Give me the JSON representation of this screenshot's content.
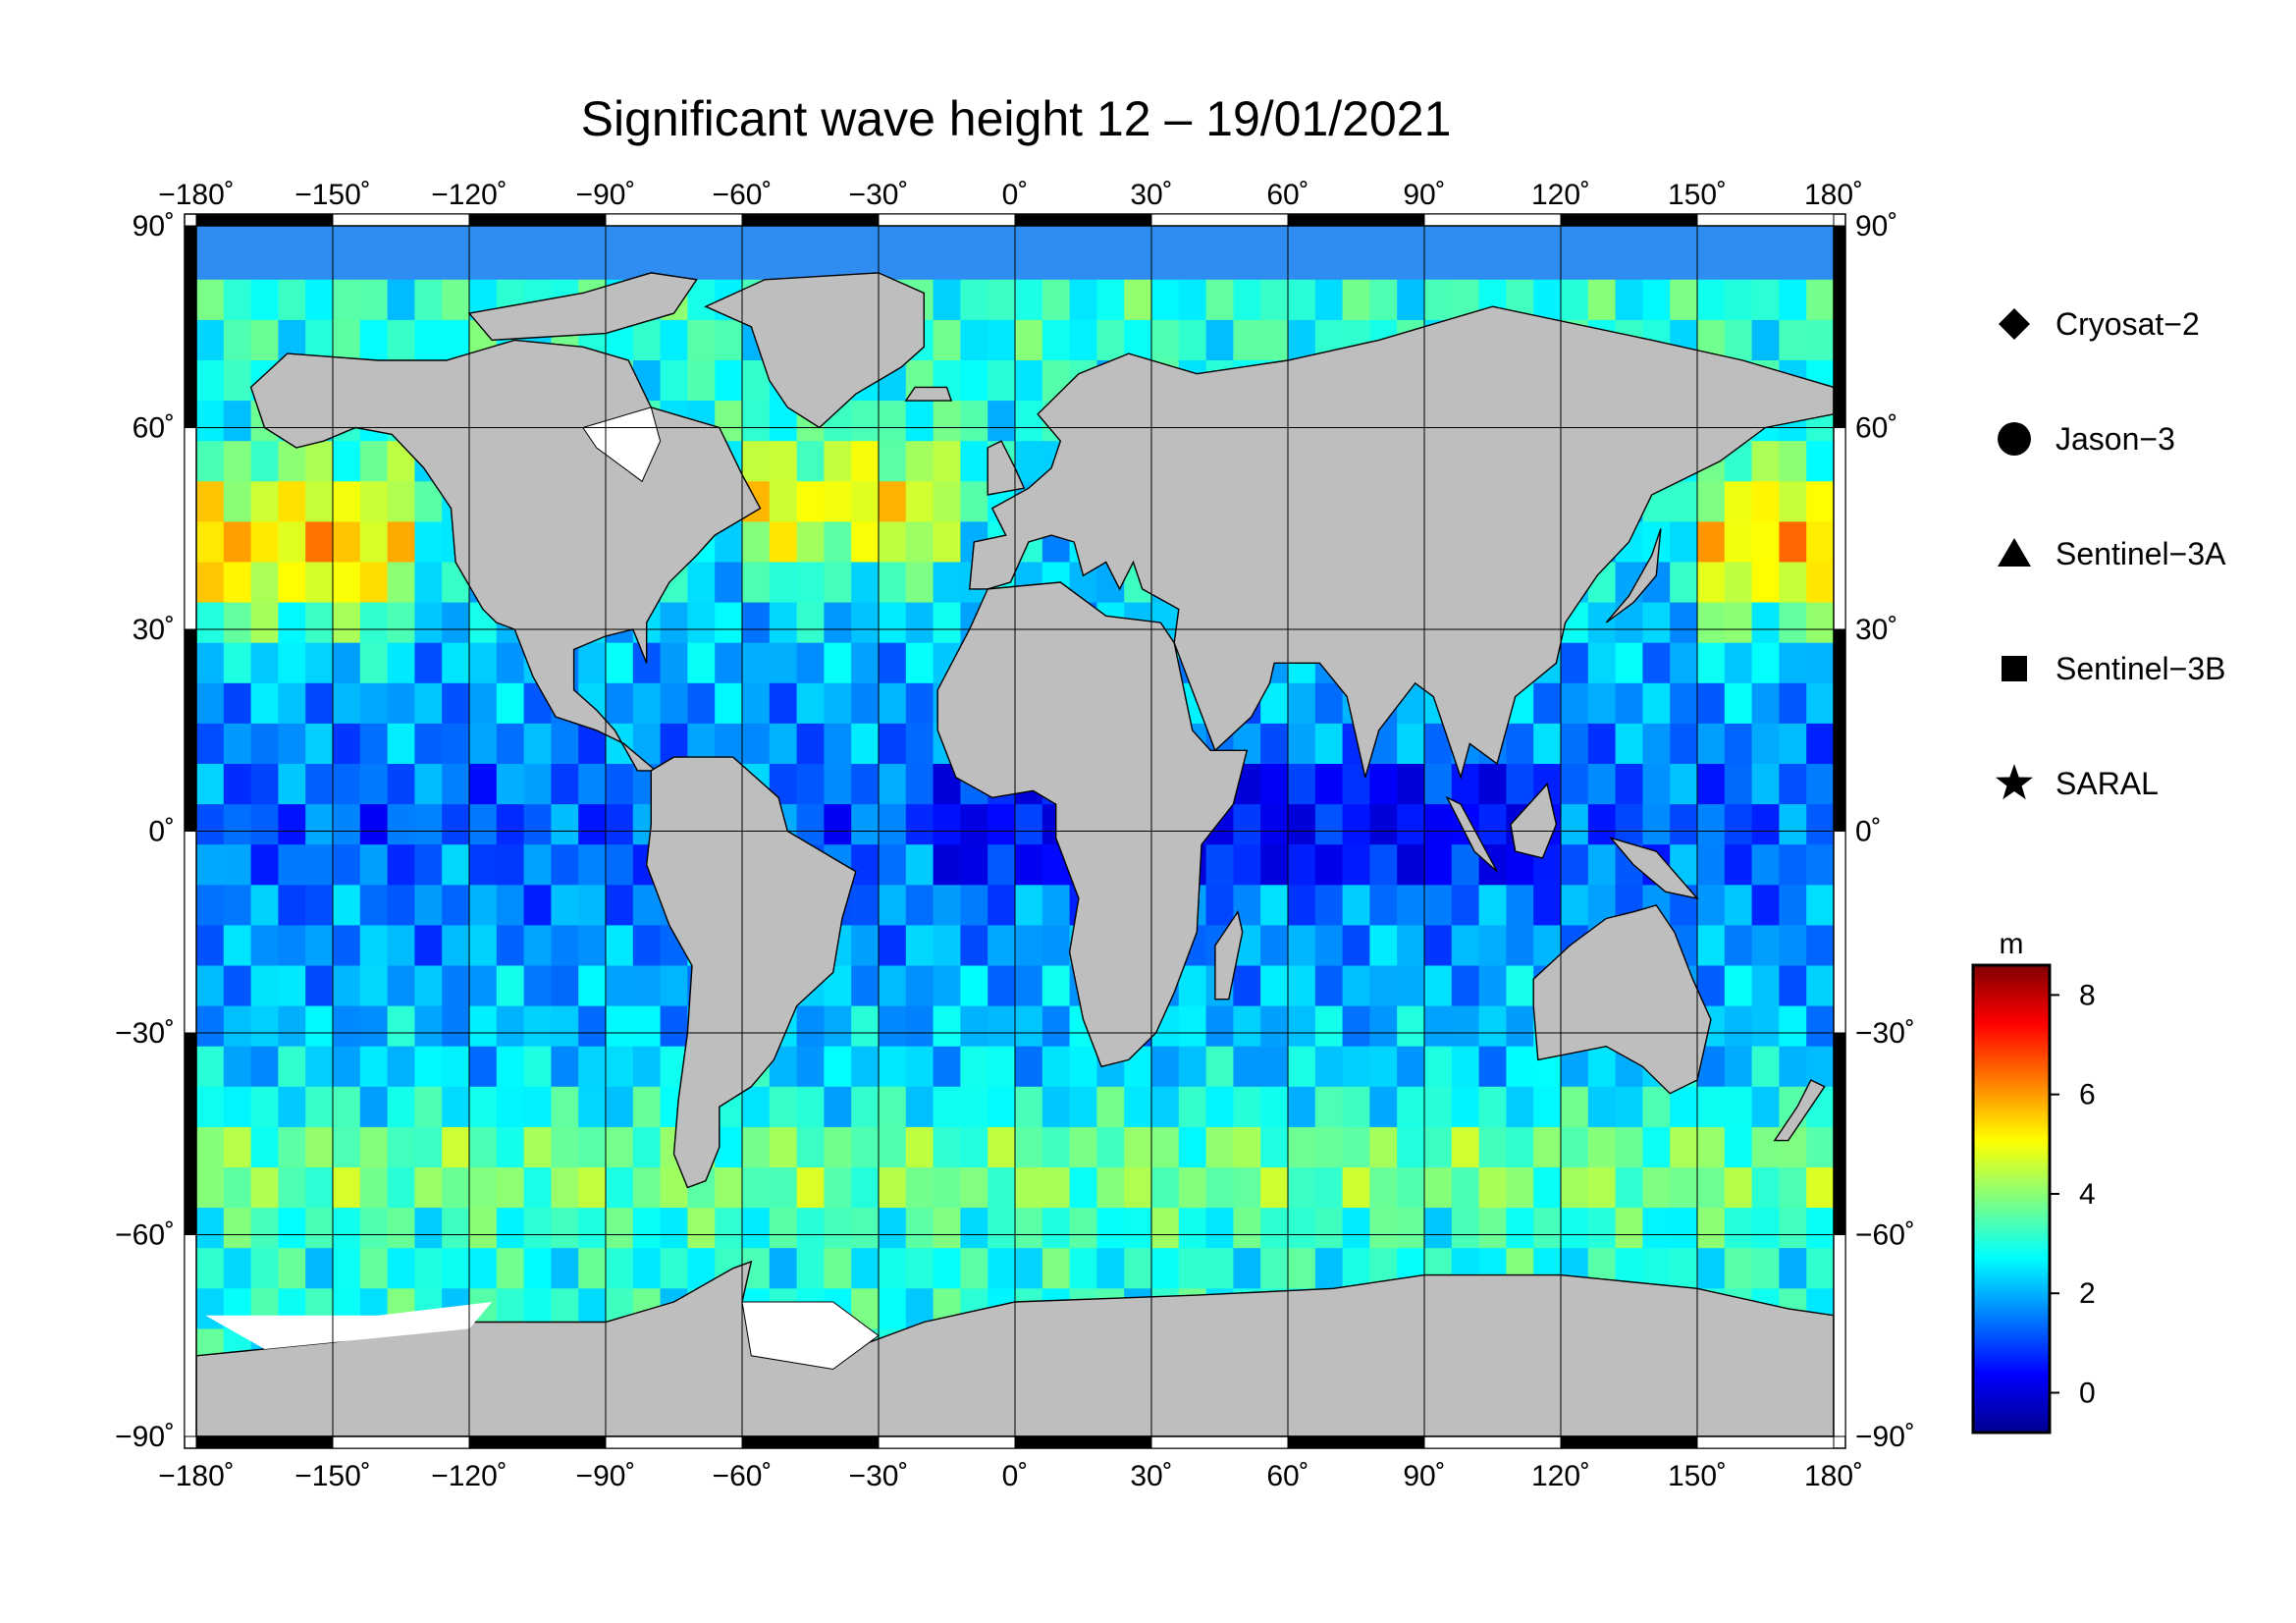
{
  "title": "Significant wave height 12 – 19/01/2021",
  "map": {
    "lon_ticks": [
      "−180˚",
      "−150˚",
      "−120˚",
      "−90˚",
      "−60˚",
      "−30˚",
      "0˚",
      "30˚",
      "60˚",
      "90˚",
      "120˚",
      "150˚",
      "180˚"
    ],
    "lat_ticks_left": [
      "90˚",
      "60˚",
      "30˚",
      "0˚",
      "−30˚",
      "−60˚",
      "−90˚"
    ],
    "lat_ticks_right": [
      "90˚",
      "60˚",
      "30˚",
      "0˚",
      "−30˚",
      "−60˚",
      "−90˚"
    ],
    "lon_range": [
      -180,
      180
    ],
    "lat_range": [
      -90,
      90
    ],
    "grid": true,
    "land_color": "#bebebe",
    "ice_color": "#ffffff"
  },
  "legend": {
    "items": [
      {
        "label": "Cryosat−2",
        "marker": "diamond"
      },
      {
        "label": "Jason−3",
        "marker": "circle"
      },
      {
        "label": "Sentinel−3A",
        "marker": "triangle"
      },
      {
        "label": "Sentinel−3B",
        "marker": "square"
      },
      {
        "label": "SARAL",
        "marker": "star"
      }
    ]
  },
  "colorbar": {
    "unit": "m",
    "ticks": [
      "8",
      "6",
      "4",
      "2",
      "0"
    ],
    "range": [
      -0.8,
      8.6
    ],
    "colors": [
      "#00008f",
      "#0000ff",
      "#0080ff",
      "#00ffff",
      "#80ff80",
      "#ffff00",
      "#ff8000",
      "#ff0000",
      "#800000"
    ]
  }
}
